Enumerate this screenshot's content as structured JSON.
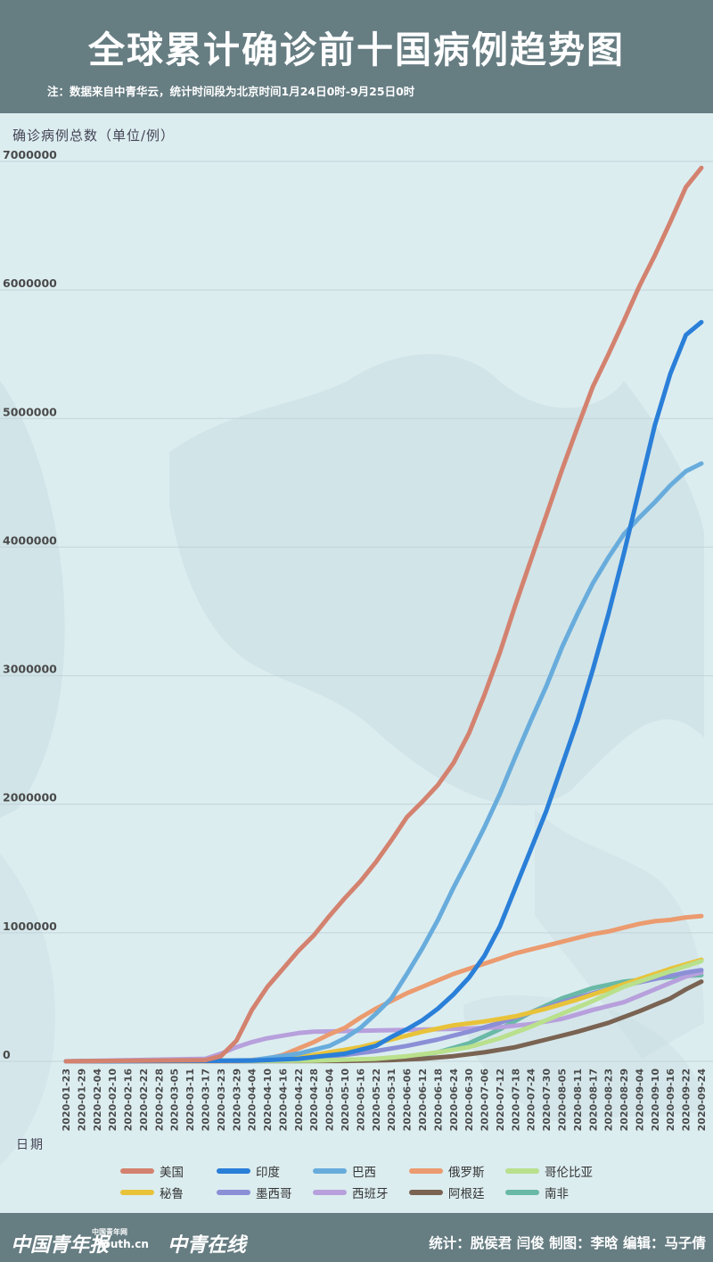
{
  "header": {
    "title": "全球累计确诊前十国病例趋势图",
    "note": "注：数据来自中青华云，统计时间段为北京时间1月24日0时-9月25日0时"
  },
  "footer": {
    "brand_1": "中国青年报",
    "brand_2": "Youth.cn",
    "brand_2_top": "中国青年网",
    "brand_3": "中青在线",
    "credits": "统计：脱侯君 闫俊 制图：李晗 编辑：马子倩"
  },
  "chart_data": {
    "type": "line",
    "ylabel": "确诊病例总数（单位/例）",
    "xlabel": "日期",
    "ylim": [
      0,
      7000000
    ],
    "yticks": [
      "7000000",
      "6000000",
      "5000000",
      "4000000",
      "3000000",
      "2000000",
      "1000000",
      "0"
    ],
    "x_ticks": [
      "2020-01-23",
      "2020-01-29",
      "2020-02-04",
      "2020-02-10",
      "2020-02-16",
      "2020-02-22",
      "2020-02-28",
      "2020-03-05",
      "2020-03-11",
      "2020-03-17",
      "2020-03-23",
      "2020-03-29",
      "2020-04-04",
      "2020-04-10",
      "2020-04-16",
      "2020-04-22",
      "2020-04-28",
      "2020-05-04",
      "2020-05-10",
      "2020-05-16",
      "2020-05-22",
      "2020-05-31",
      "2020-06-06",
      "2020-06-12",
      "2020-06-18",
      "2020-06-24",
      "2020-06-30",
      "2020-07-06",
      "2020-07-12",
      "2020-07-18",
      "2020-07-24",
      "2020-07-30",
      "2020-08-05",
      "2020-08-11",
      "2020-08-17",
      "2020-08-23",
      "2020-08-29",
      "2020-09-04",
      "2020-09-10",
      "2020-09-16",
      "2020-09-22",
      "2020-09-24"
    ],
    "grid": true,
    "legend_position": "bottom",
    "series": [
      {
        "name": "美国",
        "color": "#d3826f",
        "points": [
          [
            0,
            0
          ],
          [
            9,
            10000
          ],
          [
            10,
            40000
          ],
          [
            11,
            160000
          ],
          [
            12,
            400000
          ],
          [
            13,
            580000
          ],
          [
            14,
            720000
          ],
          [
            15,
            860000
          ],
          [
            16,
            980000
          ],
          [
            17,
            1130000
          ],
          [
            18,
            1270000
          ],
          [
            19,
            1400000
          ],
          [
            20,
            1550000
          ],
          [
            21,
            1720000
          ],
          [
            22,
            1900000
          ],
          [
            23,
            2020000
          ],
          [
            24,
            2150000
          ],
          [
            25,
            2320000
          ],
          [
            26,
            2550000
          ],
          [
            27,
            2850000
          ],
          [
            28,
            3180000
          ],
          [
            29,
            3550000
          ],
          [
            30,
            3900000
          ],
          [
            31,
            4250000
          ],
          [
            32,
            4600000
          ],
          [
            33,
            4930000
          ],
          [
            34,
            5250000
          ],
          [
            35,
            5500000
          ],
          [
            36,
            5760000
          ],
          [
            37,
            6030000
          ],
          [
            38,
            6270000
          ],
          [
            39,
            6530000
          ],
          [
            40,
            6800000
          ],
          [
            41,
            6950000
          ]
        ]
      },
      {
        "name": "印度",
        "color": "#2a7fd8",
        "points": [
          [
            0,
            0
          ],
          [
            12,
            5000
          ],
          [
            15,
            20000
          ],
          [
            18,
            60000
          ],
          [
            20,
            120000
          ],
          [
            21,
            190000
          ],
          [
            22,
            250000
          ],
          [
            23,
            320000
          ],
          [
            24,
            410000
          ],
          [
            25,
            520000
          ],
          [
            26,
            650000
          ],
          [
            27,
            820000
          ],
          [
            28,
            1050000
          ],
          [
            29,
            1350000
          ],
          [
            30,
            1650000
          ],
          [
            31,
            1950000
          ],
          [
            32,
            2300000
          ],
          [
            33,
            2650000
          ],
          [
            34,
            3050000
          ],
          [
            35,
            3480000
          ],
          [
            36,
            3950000
          ],
          [
            37,
            4450000
          ],
          [
            38,
            4950000
          ],
          [
            39,
            5350000
          ],
          [
            40,
            5650000
          ],
          [
            41,
            5750000
          ]
        ]
      },
      {
        "name": "巴西",
        "color": "#68acdc",
        "points": [
          [
            0,
            0
          ],
          [
            12,
            8000
          ],
          [
            15,
            60000
          ],
          [
            17,
            120000
          ],
          [
            18,
            180000
          ],
          [
            19,
            260000
          ],
          [
            20,
            370000
          ],
          [
            21,
            490000
          ],
          [
            22,
            680000
          ],
          [
            23,
            880000
          ],
          [
            24,
            1100000
          ],
          [
            25,
            1350000
          ],
          [
            26,
            1580000
          ],
          [
            27,
            1820000
          ],
          [
            28,
            2080000
          ],
          [
            29,
            2370000
          ],
          [
            30,
            2650000
          ],
          [
            31,
            2920000
          ],
          [
            32,
            3220000
          ],
          [
            33,
            3480000
          ],
          [
            34,
            3720000
          ],
          [
            35,
            3920000
          ],
          [
            36,
            4100000
          ],
          [
            37,
            4230000
          ],
          [
            38,
            4350000
          ],
          [
            39,
            4480000
          ],
          [
            40,
            4590000
          ],
          [
            41,
            4650000
          ]
        ]
      },
      {
        "name": "俄罗斯",
        "color": "#eb9b6f",
        "points": [
          [
            0,
            0
          ],
          [
            11,
            2000
          ],
          [
            13,
            20000
          ],
          [
            14,
            50000
          ],
          [
            15,
            100000
          ],
          [
            16,
            150000
          ],
          [
            17,
            210000
          ],
          [
            18,
            260000
          ],
          [
            19,
            340000
          ],
          [
            20,
            410000
          ],
          [
            21,
            470000
          ],
          [
            22,
            530000
          ],
          [
            23,
            580000
          ],
          [
            24,
            630000
          ],
          [
            25,
            680000
          ],
          [
            26,
            720000
          ],
          [
            27,
            760000
          ],
          [
            28,
            800000
          ],
          [
            29,
            840000
          ],
          [
            30,
            870000
          ],
          [
            31,
            900000
          ],
          [
            32,
            930000
          ],
          [
            33,
            960000
          ],
          [
            34,
            990000
          ],
          [
            35,
            1010000
          ],
          [
            36,
            1040000
          ],
          [
            37,
            1070000
          ],
          [
            38,
            1090000
          ],
          [
            39,
            1100000
          ],
          [
            40,
            1120000
          ],
          [
            41,
            1130000
          ]
        ]
      },
      {
        "name": "哥伦比亚",
        "color": "#b9e08c",
        "points": [
          [
            0,
            0
          ],
          [
            16,
            5000
          ],
          [
            20,
            20000
          ],
          [
            22,
            40000
          ],
          [
            24,
            70000
          ],
          [
            26,
            110000
          ],
          [
            28,
            180000
          ],
          [
            30,
            270000
          ],
          [
            32,
            370000
          ],
          [
            34,
            470000
          ],
          [
            36,
            580000
          ],
          [
            38,
            660000
          ],
          [
            40,
            740000
          ],
          [
            41,
            780000
          ]
        ]
      },
      {
        "name": "秘鲁",
        "color": "#e8c33a",
        "points": [
          [
            0,
            0
          ],
          [
            13,
            5000
          ],
          [
            15,
            30000
          ],
          [
            17,
            70000
          ],
          [
            19,
            110000
          ],
          [
            21,
            170000
          ],
          [
            23,
            230000
          ],
          [
            25,
            280000
          ],
          [
            27,
            310000
          ],
          [
            29,
            350000
          ],
          [
            31,
            410000
          ],
          [
            33,
            480000
          ],
          [
            35,
            560000
          ],
          [
            37,
            640000
          ],
          [
            39,
            720000
          ],
          [
            41,
            790000
          ]
        ]
      },
      {
        "name": "墨西哥",
        "color": "#8b8fd6",
        "points": [
          [
            0,
            0
          ],
          [
            14,
            10000
          ],
          [
            16,
            30000
          ],
          [
            18,
            50000
          ],
          [
            20,
            80000
          ],
          [
            22,
            120000
          ],
          [
            24,
            170000
          ],
          [
            26,
            230000
          ],
          [
            28,
            300000
          ],
          [
            30,
            380000
          ],
          [
            32,
            460000
          ],
          [
            34,
            530000
          ],
          [
            36,
            590000
          ],
          [
            38,
            640000
          ],
          [
            40,
            690000
          ],
          [
            41,
            710000
          ]
        ]
      },
      {
        "name": "西班牙",
        "color": "#b7a0dc",
        "points": [
          [
            0,
            0
          ],
          [
            9,
            20000
          ],
          [
            10,
            60000
          ],
          [
            11,
            110000
          ],
          [
            12,
            150000
          ],
          [
            13,
            180000
          ],
          [
            14,
            200000
          ],
          [
            15,
            220000
          ],
          [
            16,
            230000
          ],
          [
            18,
            235000
          ],
          [
            20,
            240000
          ],
          [
            22,
            245000
          ],
          [
            24,
            250000
          ],
          [
            26,
            255000
          ],
          [
            28,
            265000
          ],
          [
            30,
            290000
          ],
          [
            32,
            330000
          ],
          [
            34,
            400000
          ],
          [
            36,
            460000
          ],
          [
            38,
            560000
          ],
          [
            40,
            660000
          ],
          [
            41,
            690000
          ]
        ]
      },
      {
        "name": "阿根廷",
        "color": "#7a6352",
        "points": [
          [
            0,
            0
          ],
          [
            18,
            3000
          ],
          [
            21,
            10000
          ],
          [
            23,
            20000
          ],
          [
            25,
            40000
          ],
          [
            27,
            70000
          ],
          [
            29,
            110000
          ],
          [
            31,
            170000
          ],
          [
            33,
            230000
          ],
          [
            35,
            300000
          ],
          [
            37,
            390000
          ],
          [
            39,
            490000
          ],
          [
            40,
            560000
          ],
          [
            41,
            620000
          ]
        ]
      },
      {
        "name": "南非",
        "color": "#69b9a6",
        "points": [
          [
            0,
            0
          ],
          [
            18,
            5000
          ],
          [
            20,
            15000
          ],
          [
            22,
            30000
          ],
          [
            24,
            70000
          ],
          [
            26,
            140000
          ],
          [
            28,
            250000
          ],
          [
            30,
            380000
          ],
          [
            32,
            490000
          ],
          [
            34,
            570000
          ],
          [
            36,
            620000
          ],
          [
            38,
            645000
          ],
          [
            40,
            665000
          ],
          [
            41,
            670000
          ]
        ]
      }
    ]
  }
}
